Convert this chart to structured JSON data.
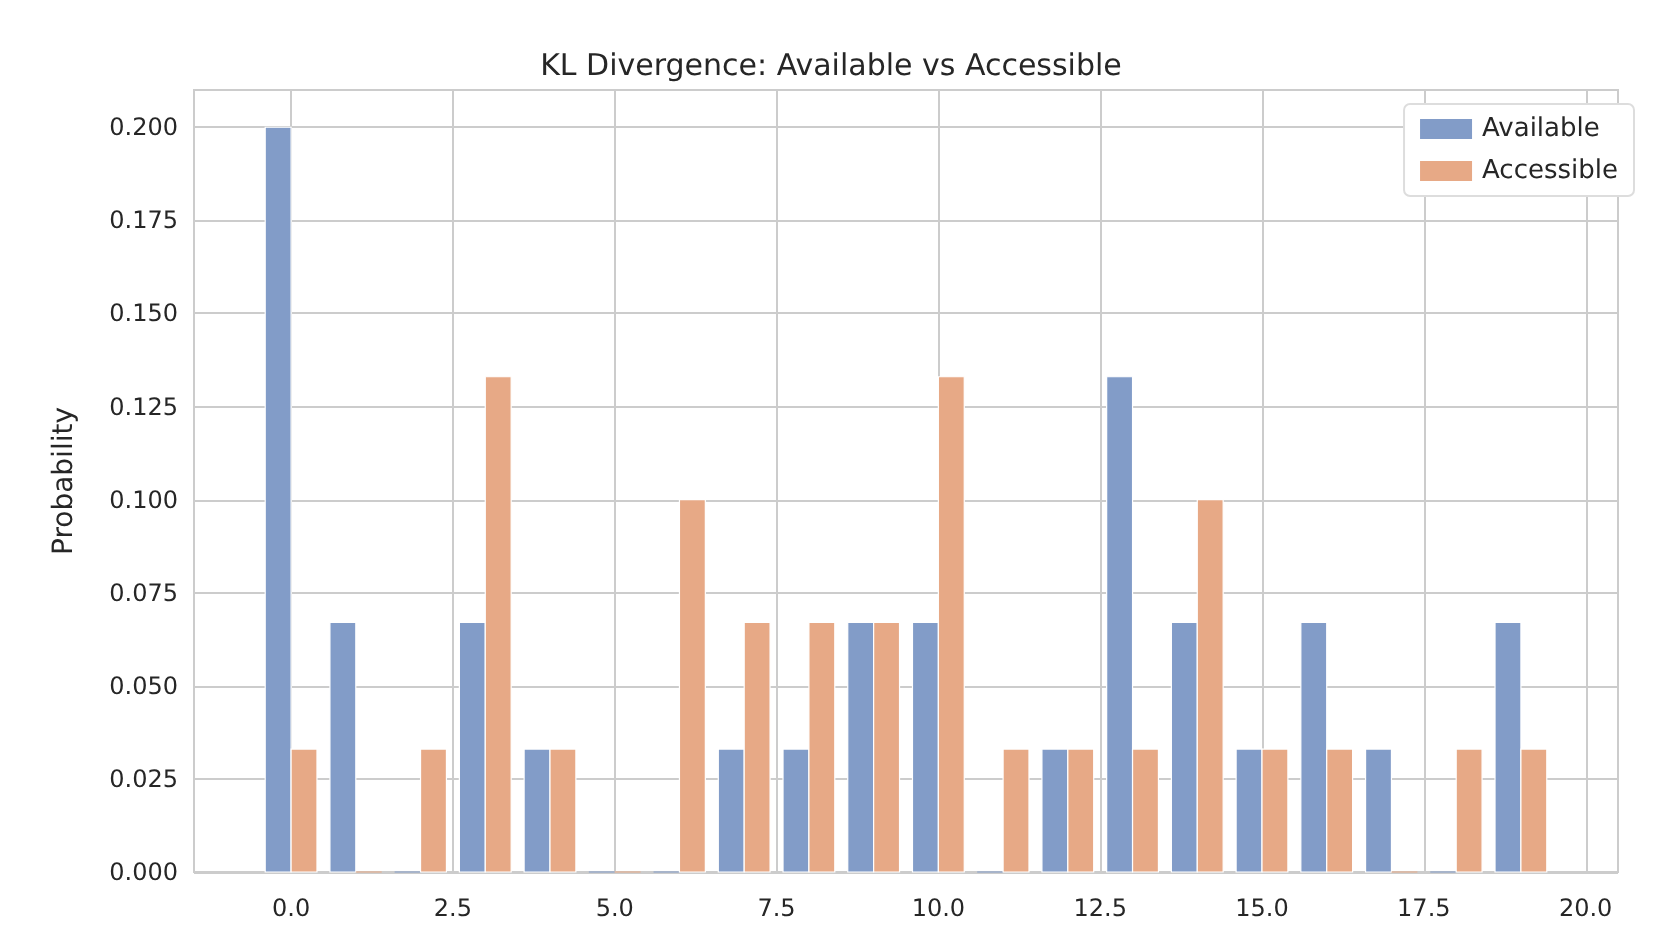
{
  "chart_data": {
    "type": "histogram",
    "title": "KL Divergence: Available vs Accessible",
    "ylabel": "Probability",
    "bins": [
      -0.5,
      0.5,
      1.5,
      2.5,
      3.5,
      4.5,
      5.5,
      6.5,
      7.5,
      8.5,
      9.5,
      10.5,
      11.5,
      12.5,
      13.5,
      14.5,
      15.5,
      16.5,
      17.5,
      18.5,
      19.5
    ],
    "series": [
      {
        "name": "Available",
        "color": "#829cc8",
        "values": [
          0.2,
          0.067,
          0,
          0.067,
          0.033,
          0,
          0,
          0.033,
          0.033,
          0.067,
          0.067,
          0,
          0.033,
          0.133,
          0.067,
          0.033,
          0.067,
          0.033,
          0,
          0.067
        ]
      },
      {
        "name": "Accessible",
        "color": "#e7a986",
        "values": [
          0.033,
          0,
          0.033,
          0.133,
          0.033,
          0,
          0.1,
          0.067,
          0.067,
          0.067,
          0.133,
          0.033,
          0.033,
          0.033,
          0.1,
          0.033,
          0.033,
          0,
          0.033,
          0.033
        ]
      }
    ],
    "xlim": [
      -1.5,
      20.5
    ],
    "xticks": [
      {
        "value": 0,
        "label": "0.0"
      },
      {
        "value": 2.5,
        "label": "2.5"
      },
      {
        "value": 5,
        "label": "5.0"
      },
      {
        "value": 7.5,
        "label": "7.5"
      },
      {
        "value": 10,
        "label": "10.0"
      },
      {
        "value": 12.5,
        "label": "12.5"
      },
      {
        "value": 15,
        "label": "15.0"
      },
      {
        "value": 17.5,
        "label": "17.5"
      },
      {
        "value": 20,
        "label": "20.0"
      }
    ],
    "ylim": [
      0,
      0.21
    ],
    "yticks": [
      {
        "value": 0,
        "label": "0.000"
      },
      {
        "value": 0.025,
        "label": "0.025"
      },
      {
        "value": 0.05,
        "label": "0.050"
      },
      {
        "value": 0.075,
        "label": "0.075"
      },
      {
        "value": 0.1,
        "label": "0.100"
      },
      {
        "value": 0.125,
        "label": "0.125"
      },
      {
        "value": 0.15,
        "label": "0.150"
      },
      {
        "value": 0.175,
        "label": "0.175"
      },
      {
        "value": 0.2,
        "label": "0.200"
      }
    ],
    "grid": true,
    "legend": "top right"
  }
}
